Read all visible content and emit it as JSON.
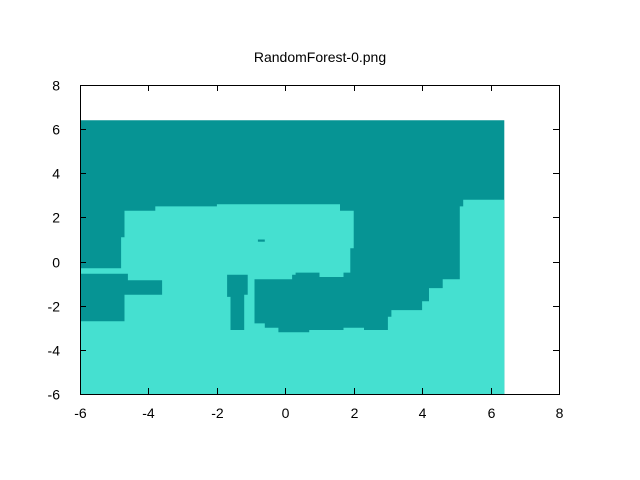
{
  "chart_data": {
    "type": "heatmap",
    "title": "RandomForest-0.png",
    "xlabel": "",
    "ylabel": "",
    "xlim": [
      -6,
      8
    ],
    "ylim": [
      -6,
      8
    ],
    "x_ticks": [
      -6,
      -4,
      -2,
      0,
      2,
      4,
      6,
      8
    ],
    "y_ticks": [
      -6,
      -4,
      -2,
      0,
      2,
      4,
      6,
      8
    ],
    "grid": false,
    "legend": "none",
    "colors": {
      "dark_class": "#069494",
      "light_class": "#45e0d0",
      "background": "#ffffff",
      "frame": "#000000"
    },
    "data_extent": {
      "x": [
        -6,
        6.4
      ],
      "y": [
        -6,
        6.4
      ]
    },
    "regions": [
      {
        "class": "dark",
        "polygon": [
          [
            -6,
            6.4
          ],
          [
            6.4,
            6.4
          ],
          [
            6.4,
            -6
          ],
          [
            -6,
            -6
          ]
        ]
      },
      {
        "class": "light",
        "polygon": [
          [
            -6,
            -6
          ],
          [
            6.4,
            -6
          ],
          [
            6.4,
            2.8
          ],
          [
            5.2,
            2.8
          ],
          [
            5.2,
            2.5
          ],
          [
            5.1,
            2.5
          ],
          [
            5.1,
            -0.8
          ],
          [
            4.6,
            -0.8
          ],
          [
            4.6,
            -1.2
          ],
          [
            4.2,
            -1.2
          ],
          [
            4.2,
            -1.8
          ],
          [
            4.0,
            -1.8
          ],
          [
            4.0,
            -2.2
          ],
          [
            3.1,
            -2.2
          ],
          [
            3.1,
            -2.5
          ],
          [
            3.0,
            -2.5
          ],
          [
            3.0,
            -3.1
          ],
          [
            2.3,
            -3.1
          ],
          [
            2.3,
            -3.0
          ],
          [
            1.7,
            -3.0
          ],
          [
            1.7,
            -3.1
          ],
          [
            0.7,
            -3.1
          ],
          [
            0.7,
            -3.2
          ],
          [
            -0.2,
            -3.2
          ],
          [
            -0.2,
            -3.0
          ],
          [
            -0.6,
            -3.0
          ],
          [
            -0.6,
            -2.8
          ],
          [
            -0.9,
            -2.8
          ],
          [
            -0.9,
            -0.8
          ],
          [
            0.3,
            -0.8
          ],
          [
            0.3,
            -0.5
          ],
          [
            1.0,
            -0.5
          ],
          [
            1.0,
            -0.7
          ],
          [
            1.7,
            -0.7
          ],
          [
            1.7,
            -0.5
          ],
          [
            1.9,
            -0.5
          ],
          [
            1.9,
            0.6
          ],
          [
            2.0,
            0.6
          ],
          [
            2.0,
            2.3
          ],
          [
            1.6,
            2.3
          ],
          [
            1.6,
            2.6
          ],
          [
            -2.0,
            2.6
          ],
          [
            -2.0,
            2.5
          ],
          [
            -3.8,
            2.5
          ],
          [
            -3.8,
            2.3
          ],
          [
            -4.7,
            2.3
          ],
          [
            -4.7,
            1.1
          ],
          [
            -4.8,
            1.1
          ],
          [
            -4.8,
            -0.3
          ],
          [
            -6,
            -0.3
          ],
          [
            -6,
            -0.55
          ],
          [
            -4.6,
            -0.55
          ],
          [
            -4.6,
            -0.85
          ],
          [
            -3.6,
            -0.85
          ],
          [
            -3.6,
            -1.5
          ],
          [
            -4.7,
            -1.5
          ],
          [
            -4.7,
            -2.7
          ],
          [
            -6,
            -2.7
          ]
        ]
      },
      {
        "class": "dark",
        "polygon": [
          [
            -0.8,
            -0.9
          ],
          [
            0.2,
            -0.9
          ],
          [
            0.2,
            -0.6
          ],
          [
            0.9,
            -0.6
          ],
          [
            0.9,
            -0.8
          ],
          [
            1.6,
            -0.8
          ],
          [
            1.6,
            -2.7
          ],
          [
            -0.8,
            -2.7
          ]
        ]
      },
      {
        "class": "dark",
        "polygon": [
          [
            -1.7,
            -0.6
          ],
          [
            -1.1,
            -0.6
          ],
          [
            -1.1,
            -1.5
          ],
          [
            -1.2,
            -1.5
          ],
          [
            -1.2,
            -3.1
          ],
          [
            -1.6,
            -3.1
          ],
          [
            -1.6,
            -1.6
          ],
          [
            -1.7,
            -1.6
          ]
        ]
      },
      {
        "class": "dark",
        "polygon": [
          [
            -0.8,
            1.0
          ],
          [
            -0.6,
            1.0
          ],
          [
            -0.6,
            0.9
          ],
          [
            -0.8,
            0.9
          ]
        ]
      }
    ]
  }
}
